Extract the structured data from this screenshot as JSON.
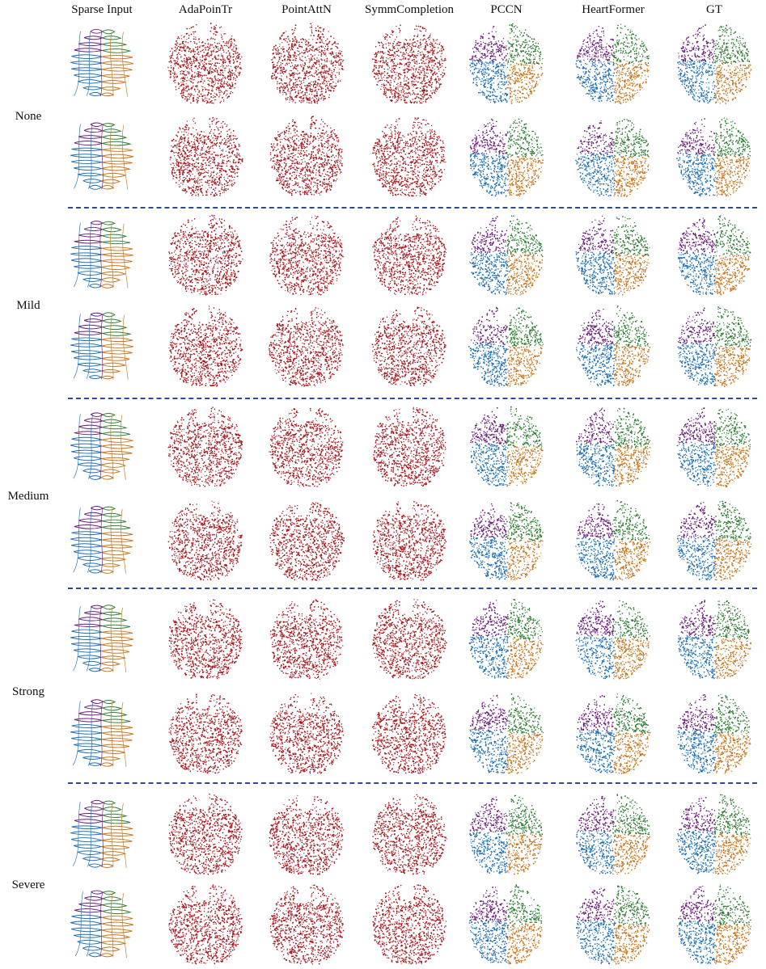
{
  "column_headers": [
    "Sparse Input",
    "AdaPoinTr",
    "PointAttN",
    "SymmCompletion",
    "PCCN",
    "HeartFormer",
    "GT"
  ],
  "column_styles": [
    "sparse",
    "red",
    "red",
    "red",
    "multi",
    "multi",
    "multi"
  ],
  "row_groups": [
    "None",
    "Mild",
    "Medium",
    "Strong",
    "Severe"
  ],
  "samples_per_group": 2,
  "colors": {
    "prediction_red": "#a8161c",
    "purple": "#6a1b7a",
    "green": "#2e7d32",
    "blue": "#1e6fb5",
    "orange": "#c8741c",
    "divider": "#2b4a94"
  }
}
